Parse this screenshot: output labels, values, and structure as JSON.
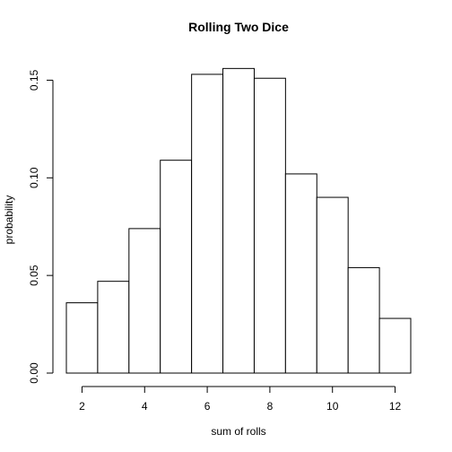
{
  "chart_data": {
    "type": "bar",
    "title": "Rolling Two Dice",
    "xlabel": "sum of rolls",
    "ylabel": "probability",
    "categories": [
      2,
      3,
      4,
      5,
      6,
      7,
      8,
      9,
      10,
      11,
      12
    ],
    "values": [
      0.036,
      0.047,
      0.074,
      0.109,
      0.153,
      0.156,
      0.151,
      0.102,
      0.09,
      0.054,
      0.028
    ],
    "xlim": [
      1.5,
      12.5
    ],
    "ylim": [
      0,
      0.158
    ],
    "x_ticks": [
      2,
      4,
      6,
      8,
      10,
      12
    ],
    "x_tick_labels": [
      "2",
      "4",
      "6",
      "8",
      "10",
      "12"
    ],
    "y_ticks": [
      0,
      0.05,
      0.1,
      0.15
    ],
    "y_tick_labels": [
      "0.00",
      "0.05",
      "0.10",
      "0.15"
    ],
    "grid": false,
    "bar_fill": "#ffffff",
    "bar_stroke": "#000000"
  }
}
